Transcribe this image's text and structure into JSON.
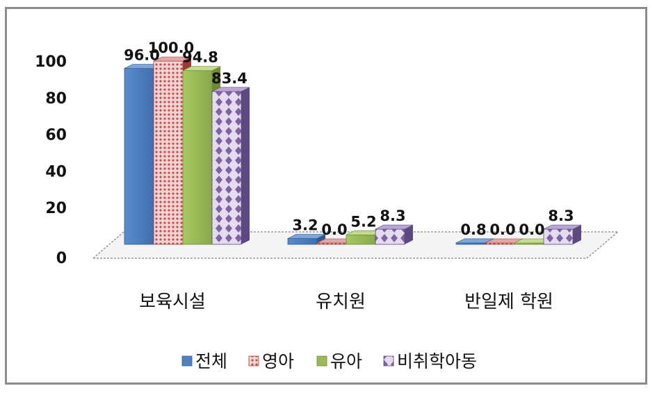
{
  "chart_data": {
    "type": "bar",
    "categories": [
      "보육시설",
      "유치원",
      "반일제 학원"
    ],
    "series": [
      {
        "name": "전체",
        "values": [
          96.0,
          3.2,
          0.8
        ]
      },
      {
        "name": "영아",
        "values": [
          100.0,
          0.0,
          0.0
        ]
      },
      {
        "name": "유아",
        "values": [
          94.8,
          5.2,
          0.0
        ]
      },
      {
        "name": "비취학아동",
        "values": [
          83.4,
          8.3,
          8.3
        ]
      }
    ],
    "data_labels": [
      [
        "96.0",
        "3.2",
        "0.8"
      ],
      [
        "100.0",
        "0.0",
        "0.0"
      ],
      [
        "94.8",
        "5.2",
        "0.0"
      ],
      [
        "83.4",
        "8.3",
        "8.3"
      ]
    ],
    "yticks": [
      "0",
      "20",
      "40",
      "60",
      "80",
      "100"
    ],
    "ylim": [
      0,
      100
    ],
    "title": "",
    "xlabel": "",
    "ylabel": "",
    "legend_position": "bottom",
    "colors": {
      "전체": "#4f81bd",
      "영아": "#c0504d",
      "유아": "#9bbb59",
      "비취학아동": "#8064a2"
    }
  }
}
